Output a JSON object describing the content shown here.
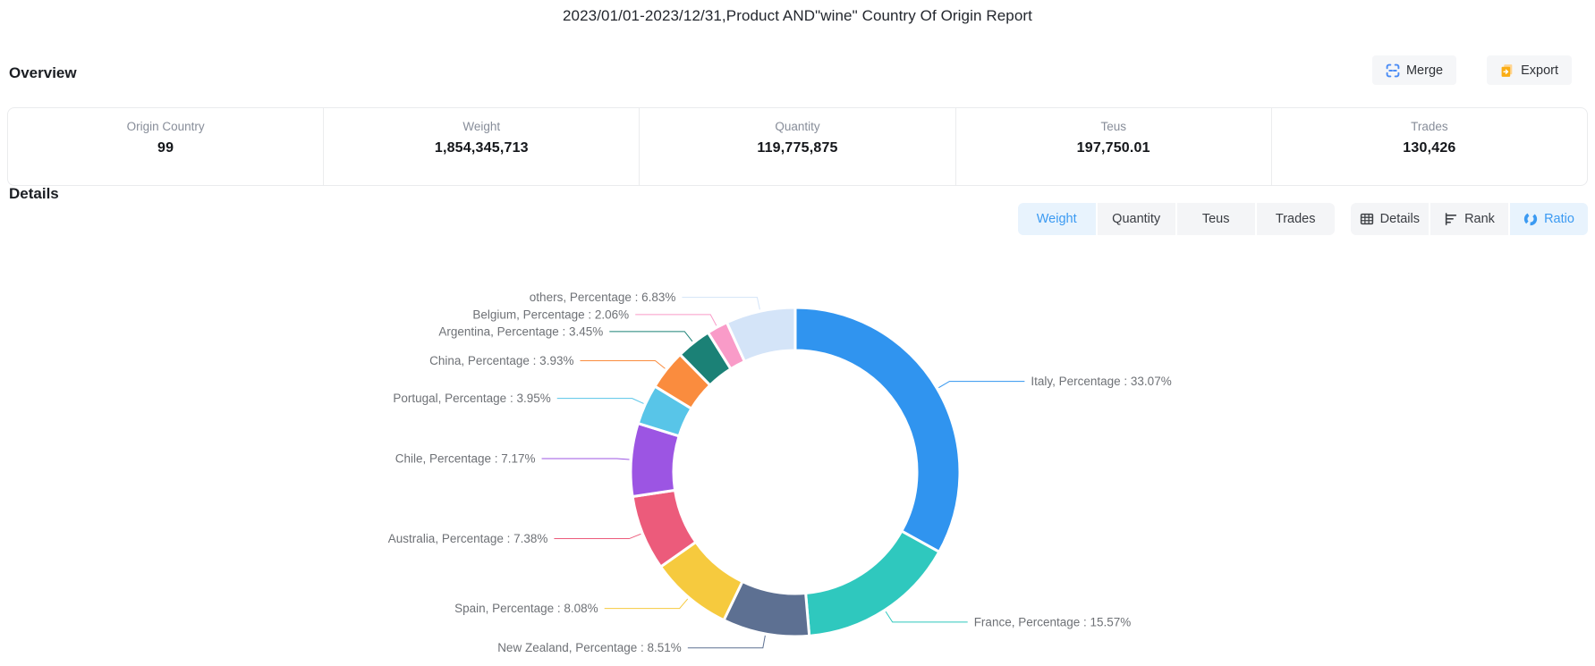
{
  "title": "2023/01/01-2023/12/31,Product AND\"wine\" Country Of Origin Report",
  "overview": {
    "heading": "Overview",
    "merge_label": "Merge",
    "export_label": "Export",
    "stats": [
      {
        "label": "Origin Country",
        "value": "99"
      },
      {
        "label": "Weight",
        "value": "1,854,345,713"
      },
      {
        "label": "Quantity",
        "value": "119,775,875"
      },
      {
        "label": "Teus",
        "value": "197,750.01"
      },
      {
        "label": "Trades",
        "value": "130,426"
      }
    ]
  },
  "details": {
    "heading": "Details",
    "metric_tabs": [
      {
        "label": "Weight",
        "active": true
      },
      {
        "label": "Quantity",
        "active": false
      },
      {
        "label": "Teus",
        "active": false
      },
      {
        "label": "Trades",
        "active": false
      }
    ],
    "view_tabs": [
      {
        "label": "Details",
        "icon": "table-icon",
        "active": false
      },
      {
        "label": "Rank",
        "icon": "rank-icon",
        "active": false
      },
      {
        "label": "Ratio",
        "icon": "ratio-icon",
        "active": true
      }
    ]
  },
  "chart_data": {
    "type": "pie",
    "subtype": "donut",
    "series_name": "Percentage",
    "label_format": "{name},  Percentage : {percent}%",
    "legend": "none",
    "labels": "outside-with-leader-lines",
    "inner_radius_ratio": 0.74,
    "slices": [
      {
        "name": "Italy",
        "percent": 33.07,
        "color": "#3094EF"
      },
      {
        "name": "France",
        "percent": 15.57,
        "color": "#2FC8BE"
      },
      {
        "name": "New Zealand",
        "percent": 8.51,
        "color": "#5D7092"
      },
      {
        "name": "Spain",
        "percent": 8.08,
        "color": "#F6CA3E"
      },
      {
        "name": "Australia",
        "percent": 7.38,
        "color": "#EC5B7B"
      },
      {
        "name": "Chile",
        "percent": 7.17,
        "color": "#9C55E3"
      },
      {
        "name": "Portugal",
        "percent": 3.95,
        "color": "#58C5E8"
      },
      {
        "name": "China",
        "percent": 3.93,
        "color": "#FA8C3E"
      },
      {
        "name": "Argentina",
        "percent": 3.45,
        "color": "#1B8176"
      },
      {
        "name": "Belgium",
        "percent": 2.06,
        "color": "#F99BC8"
      },
      {
        "name": "others",
        "percent": 6.83,
        "color": "#D4E4F8"
      }
    ]
  },
  "colors": {
    "accent_blue": "#3B9AF2",
    "active_tab_bg": "#E8F3FD",
    "tab_bg": "#F4F5F7",
    "merge_icon_blue": "#4B8CF5",
    "export_icon_orange": "#FAAD14",
    "label_gray": "#6E7176"
  }
}
